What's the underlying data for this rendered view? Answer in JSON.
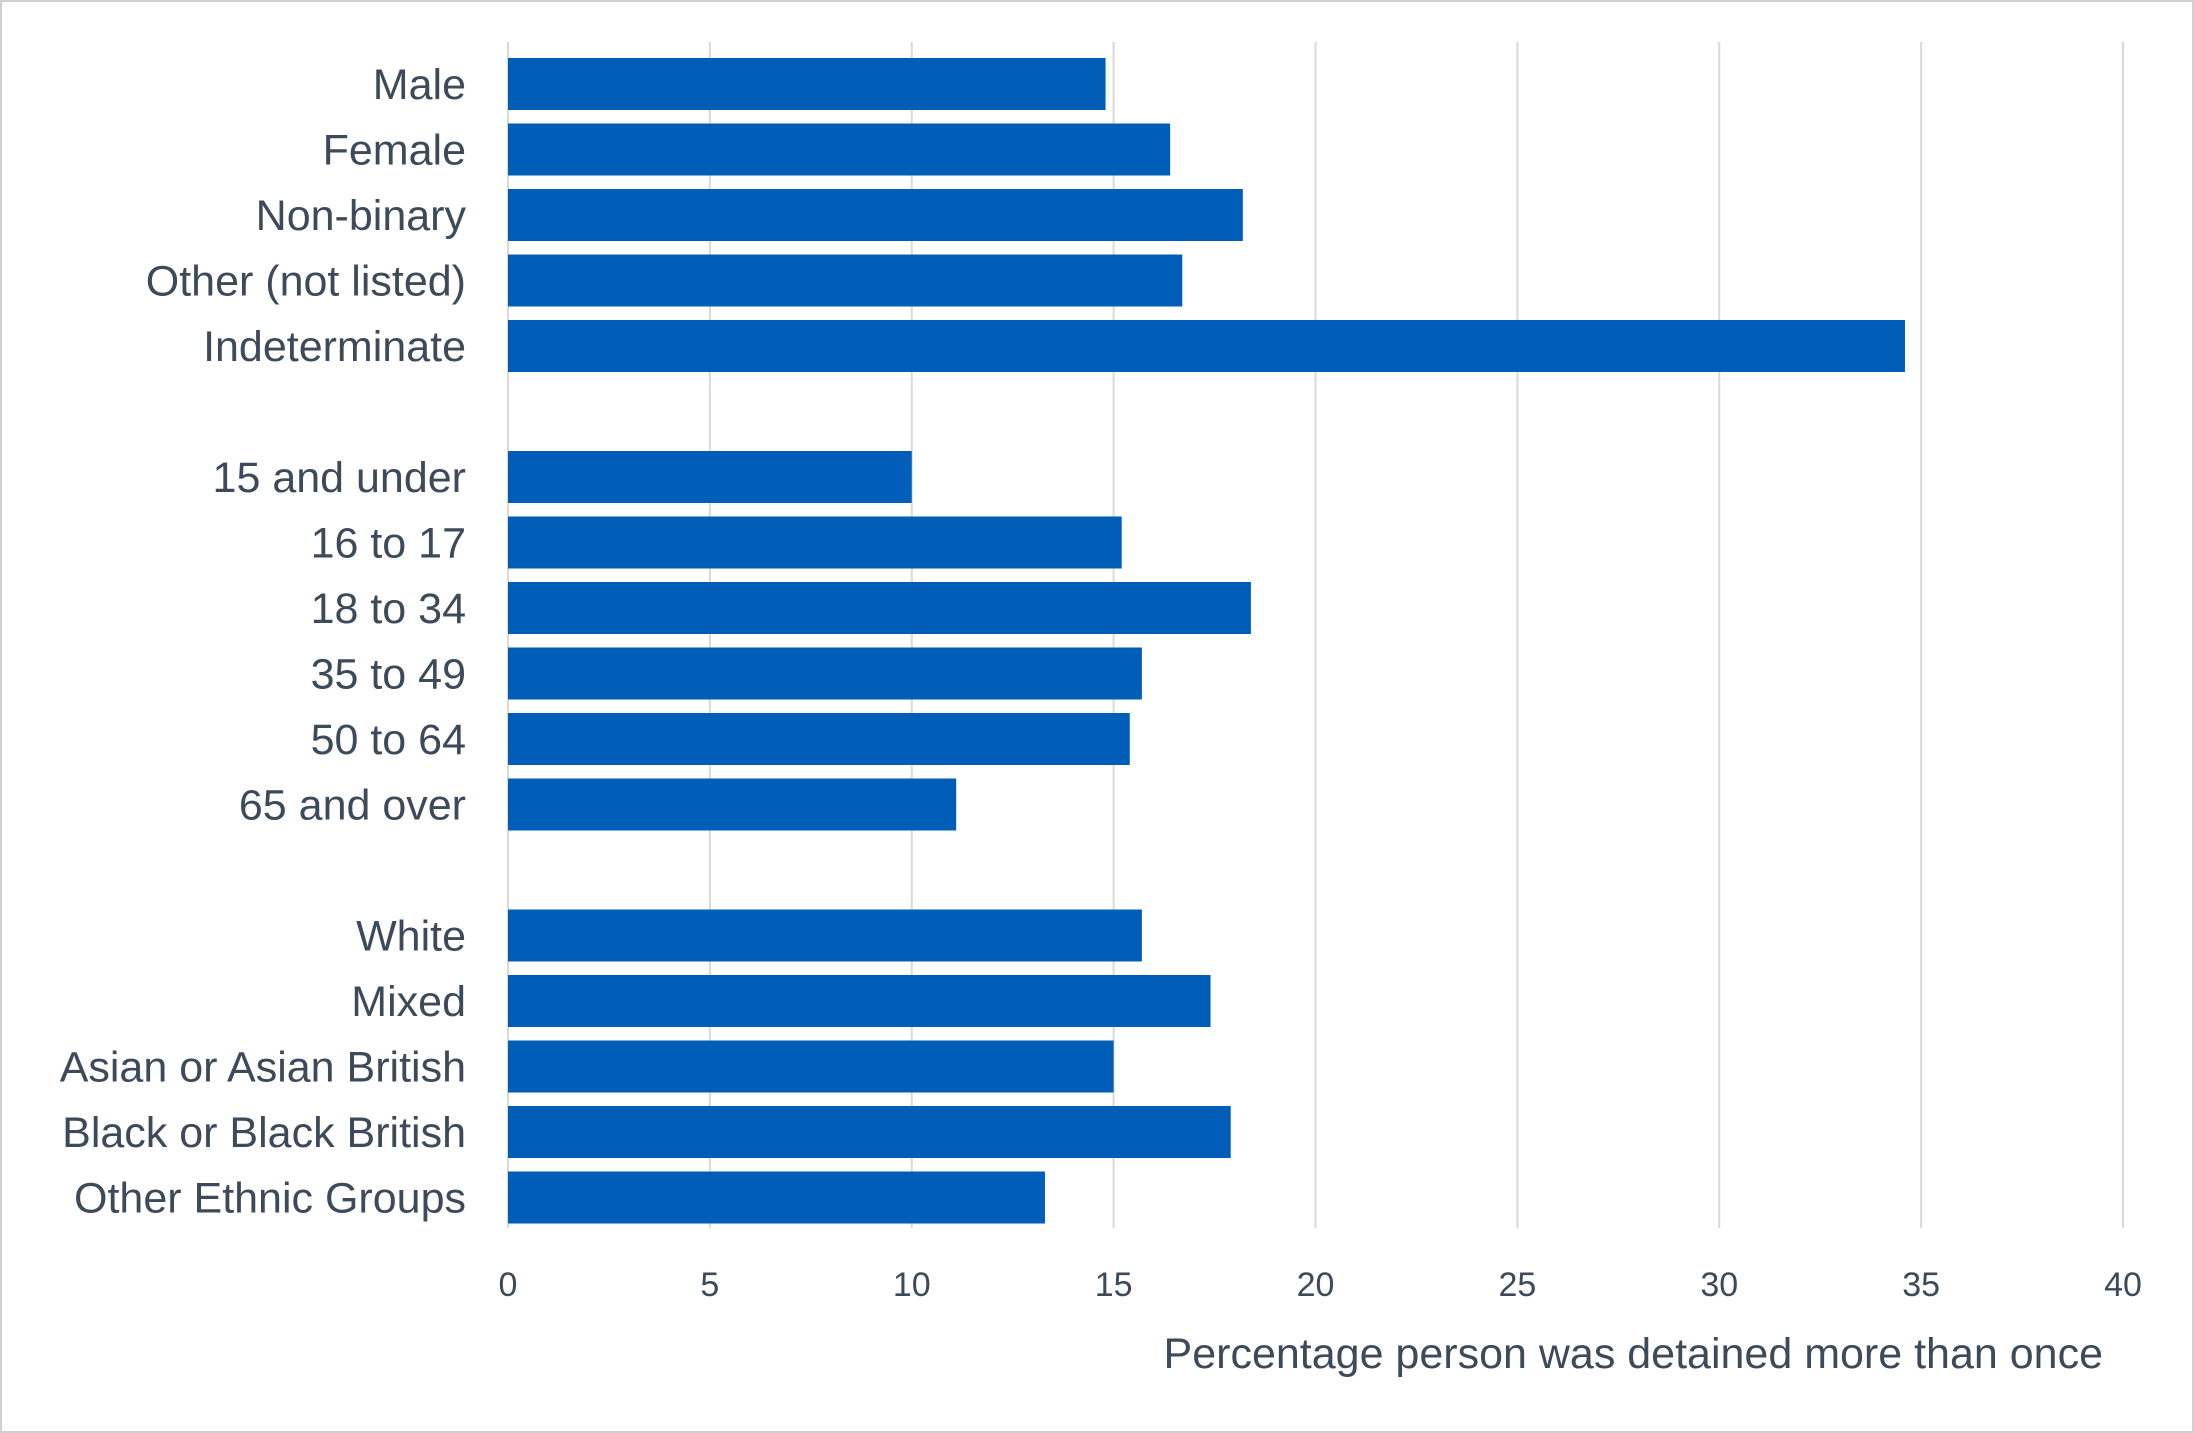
{
  "chart_data": {
    "type": "bar",
    "orientation": "horizontal",
    "title": "",
    "xlabel": "Percentage person was detained more than once",
    "ylabel": "",
    "xlim": [
      0,
      40
    ],
    "xticks": [
      0,
      5,
      10,
      15,
      20,
      25,
      30,
      35,
      40
    ],
    "grid": true,
    "legend": "none",
    "bar_color": "#005EB8",
    "groups": [
      {
        "categories": [
          "Male",
          "Female",
          "Non-binary",
          "Other (not listed)",
          "Indeterminate"
        ],
        "values": [
          14.8,
          16.4,
          18.2,
          16.7,
          34.6
        ]
      },
      {
        "categories": [
          "15 and under",
          "16 to 17",
          "18 to 34",
          "35 to 49",
          "50 to 64",
          "65 and over"
        ],
        "values": [
          10.0,
          15.2,
          18.4,
          15.7,
          15.4,
          11.1
        ]
      },
      {
        "categories": [
          "White",
          "Mixed",
          "Asian or Asian British",
          "Black or Black British",
          "Other Ethnic Groups"
        ],
        "values": [
          15.7,
          17.4,
          15.0,
          17.9,
          13.3
        ]
      }
    ]
  }
}
